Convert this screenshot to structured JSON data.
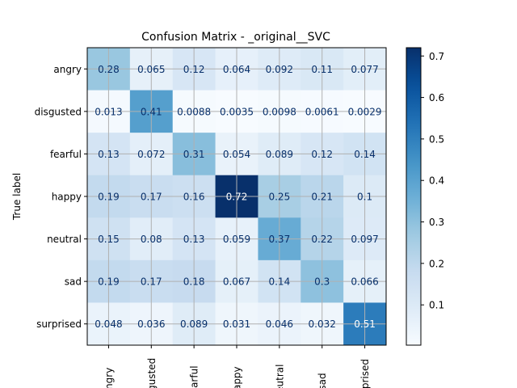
{
  "chart_data": {
    "type": "heatmap",
    "title": "Confusion Matrix - _original__SVC",
    "ylabel": "True label",
    "xlabel": "",
    "row_labels": [
      "angry",
      "disgusted",
      "fearful",
      "happy",
      "neutral",
      "sad",
      "surprised"
    ],
    "col_labels": [
      "angry",
      "disgusted",
      "fearful",
      "happy",
      "neutral",
      "sad",
      "surprised"
    ],
    "values": [
      [
        0.28,
        0.065,
        0.12,
        0.064,
        0.092,
        0.11,
        0.077
      ],
      [
        0.013,
        0.41,
        0.0088,
        0.0035,
        0.0098,
        0.0061,
        0.0029
      ],
      [
        0.13,
        0.072,
        0.31,
        0.054,
        0.089,
        0.12,
        0.14
      ],
      [
        0.19,
        0.17,
        0.16,
        0.72,
        0.25,
        0.21,
        0.1
      ],
      [
        0.15,
        0.08,
        0.13,
        0.059,
        0.37,
        0.22,
        0.097
      ],
      [
        0.19,
        0.17,
        0.18,
        0.067,
        0.14,
        0.3,
        0.066
      ],
      [
        0.048,
        0.036,
        0.089,
        0.031,
        0.046,
        0.032,
        0.51
      ]
    ],
    "colormap": "Blues",
    "vmin": 0.0029,
    "vmax": 0.72,
    "colorbar_ticks": [
      "0.1",
      "0.2",
      "0.3",
      "0.4",
      "0.5",
      "0.6",
      "0.7"
    ],
    "grid": true,
    "text_color_dark": "#08306b",
    "text_color_light": "#ffffff"
  }
}
